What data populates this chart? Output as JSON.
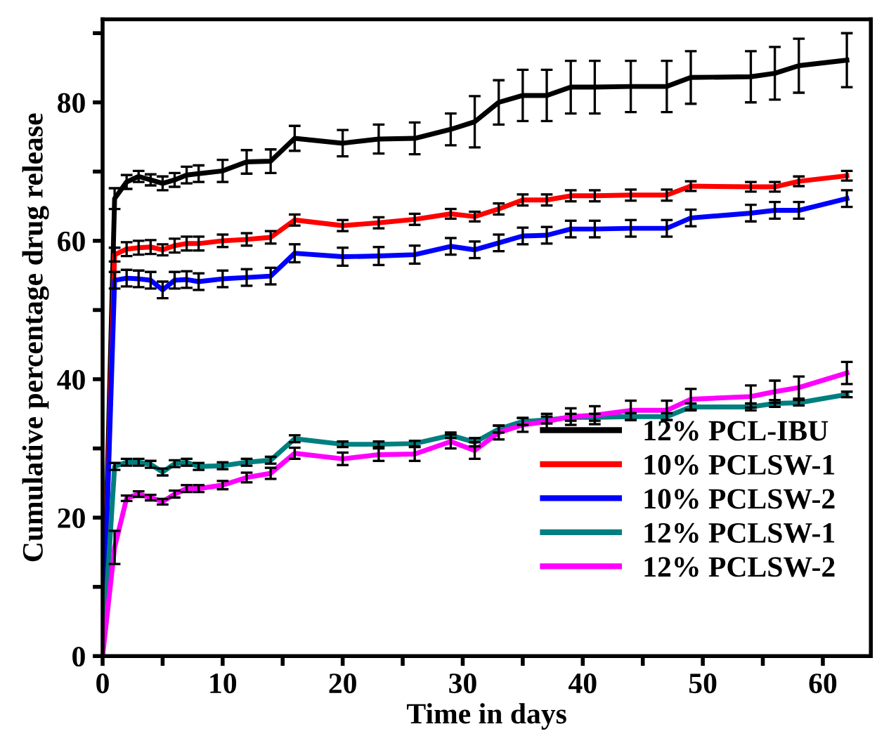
{
  "chart_data": {
    "type": "line",
    "xlabel": "Time in days",
    "ylabel": "Cumulative percentage drug release",
    "x": [
      0,
      1,
      2,
      3,
      4,
      5,
      6,
      7,
      8,
      10,
      12,
      14,
      16,
      20,
      23,
      26,
      29,
      31,
      33,
      35,
      37,
      39,
      41,
      44,
      47,
      49,
      54,
      56,
      58,
      62
    ],
    "series": [
      {
        "name": "12% PCL-IBU",
        "color": "#000000",
        "values": [
          0,
          66.1,
          68.5,
          69.3,
          68.8,
          68.3,
          68.8,
          69.5,
          69.7,
          70.1,
          71.4,
          71.5,
          74.8,
          74.1,
          74.7,
          74.8,
          76.1,
          77.2,
          80.0,
          81.0,
          81.0,
          82.2,
          82.2,
          82.3,
          82.3,
          83.6,
          83.7,
          84.2,
          85.3,
          86.1
        ],
        "errors": [
          null,
          1.5,
          1,
          0.8,
          0.8,
          1,
          1,
          1.2,
          1.2,
          1.6,
          1.7,
          1.7,
          1.8,
          1.9,
          2.1,
          2.3,
          2.3,
          3.7,
          3.2,
          3.7,
          3.7,
          3.8,
          3.8,
          3.7,
          3.7,
          3.8,
          3.7,
          3.8,
          3.9,
          3.9
        ]
      },
      {
        "name": "10% PCLSW-1",
        "color": "#ff0000",
        "values": [
          0,
          58.0,
          58.8,
          59.0,
          59.1,
          58.7,
          59.3,
          59.6,
          59.6,
          60.0,
          60.2,
          60.5,
          63.0,
          62.2,
          62.6,
          63.1,
          63.9,
          63.5,
          64.6,
          65.9,
          65.9,
          66.5,
          66.5,
          66.6,
          66.6,
          67.9,
          67.8,
          67.8,
          68.6,
          69.4
        ],
        "errors": [
          null,
          1,
          1,
          1,
          1,
          0.8,
          1,
          1,
          1,
          0.9,
          0.9,
          0.9,
          0.8,
          0.8,
          0.8,
          0.8,
          0.7,
          0.7,
          0.8,
          0.8,
          0.8,
          0.8,
          0.8,
          0.8,
          0.8,
          0.7,
          0.7,
          0.7,
          0.7,
          0.7
        ]
      },
      {
        "name": "10% PCLSW-2",
        "color": "#0000ff",
        "values": [
          0,
          54.3,
          54.6,
          54.5,
          54.3,
          52.9,
          54.3,
          54.4,
          54.1,
          54.5,
          54.7,
          54.9,
          58.2,
          57.7,
          57.8,
          58.0,
          59.2,
          58.7,
          59.7,
          60.7,
          60.8,
          61.7,
          61.7,
          61.8,
          61.8,
          63.3,
          64.0,
          64.4,
          64.4,
          66.1
        ],
        "errors": [
          null,
          1.2,
          1.2,
          1.2,
          1.2,
          1.2,
          1.2,
          1.2,
          1.2,
          1.2,
          1.2,
          1.2,
          1.3,
          1.3,
          1.3,
          1.3,
          1.2,
          1.2,
          1.2,
          1.2,
          1.2,
          1.2,
          1.2,
          1.2,
          1.2,
          1.2,
          1.2,
          1.2,
          1.2,
          1.2
        ]
      },
      {
        "name": "12% PCLSW-1",
        "color": "#007f7f",
        "values": [
          0,
          27.4,
          28.0,
          28.0,
          27.7,
          26.6,
          27.8,
          28.0,
          27.4,
          27.5,
          28.0,
          28.3,
          31.4,
          30.6,
          30.6,
          30.7,
          31.9,
          30.9,
          32.8,
          33.9,
          34.1,
          34.5,
          34.5,
          34.6,
          34.6,
          36.0,
          36.0,
          36.5,
          36.6,
          37.8
        ],
        "errors": [
          null,
          0.5,
          0.5,
          0.5,
          0.5,
          0.5,
          0.5,
          0.5,
          0.5,
          0.5,
          0.5,
          0.5,
          0.5,
          0.4,
          0.4,
          0.4,
          0.4,
          0.6,
          0.5,
          0.5,
          0.5,
          0.5,
          0.5,
          0.5,
          0.5,
          0.5,
          0.5,
          0.5,
          0.4,
          0.4
        ]
      },
      {
        "name": "12% PCLSW-2",
        "color": "#ff00ff",
        "values": [
          0,
          15.7,
          22.8,
          23.4,
          22.9,
          22.3,
          23.4,
          24.2,
          24.2,
          24.7,
          25.8,
          26.4,
          29.3,
          28.5,
          29.1,
          29.2,
          31.0,
          29.7,
          32.3,
          33.4,
          33.9,
          34.6,
          34.8,
          35.5,
          35.5,
          37.1,
          37.5,
          38.2,
          38.8,
          40.9
        ],
        "errors": [
          null,
          2.4,
          0.4,
          0.4,
          0.4,
          0.4,
          0.5,
          0.5,
          0.5,
          0.6,
          0.7,
          0.8,
          0.8,
          0.9,
          0.9,
          1.0,
          1.0,
          1.2,
          1.0,
          1.0,
          1.1,
          1.2,
          1.3,
          1.4,
          1.4,
          1.5,
          1.6,
          1.6,
          1.6,
          1.6
        ]
      }
    ],
    "xlim": [
      0,
      64
    ],
    "xticks": [
      0,
      {
        "value": 5,
        "label": null
      },
      10,
      {
        "value": 15,
        "label": null
      },
      20,
      {
        "value": 25,
        "label": null
      },
      30,
      {
        "value": 35,
        "label": null
      },
      40,
      {
        "value": 45,
        "label": null
      },
      50,
      {
        "value": 55,
        "label": null
      },
      60
    ],
    "ylim": [
      0,
      92
    ],
    "yticks": [
      0,
      {
        "value": 10,
        "label": null
      },
      20,
      {
        "value": 30,
        "label": null
      },
      40,
      {
        "value": 50,
        "label": null
      },
      60,
      {
        "value": 70,
        "label": null
      },
      80,
      {
        "value": 90,
        "label": null
      }
    ],
    "grid": false,
    "legend": "bottom right",
    "marker": "none",
    "line_style": "solid"
  }
}
